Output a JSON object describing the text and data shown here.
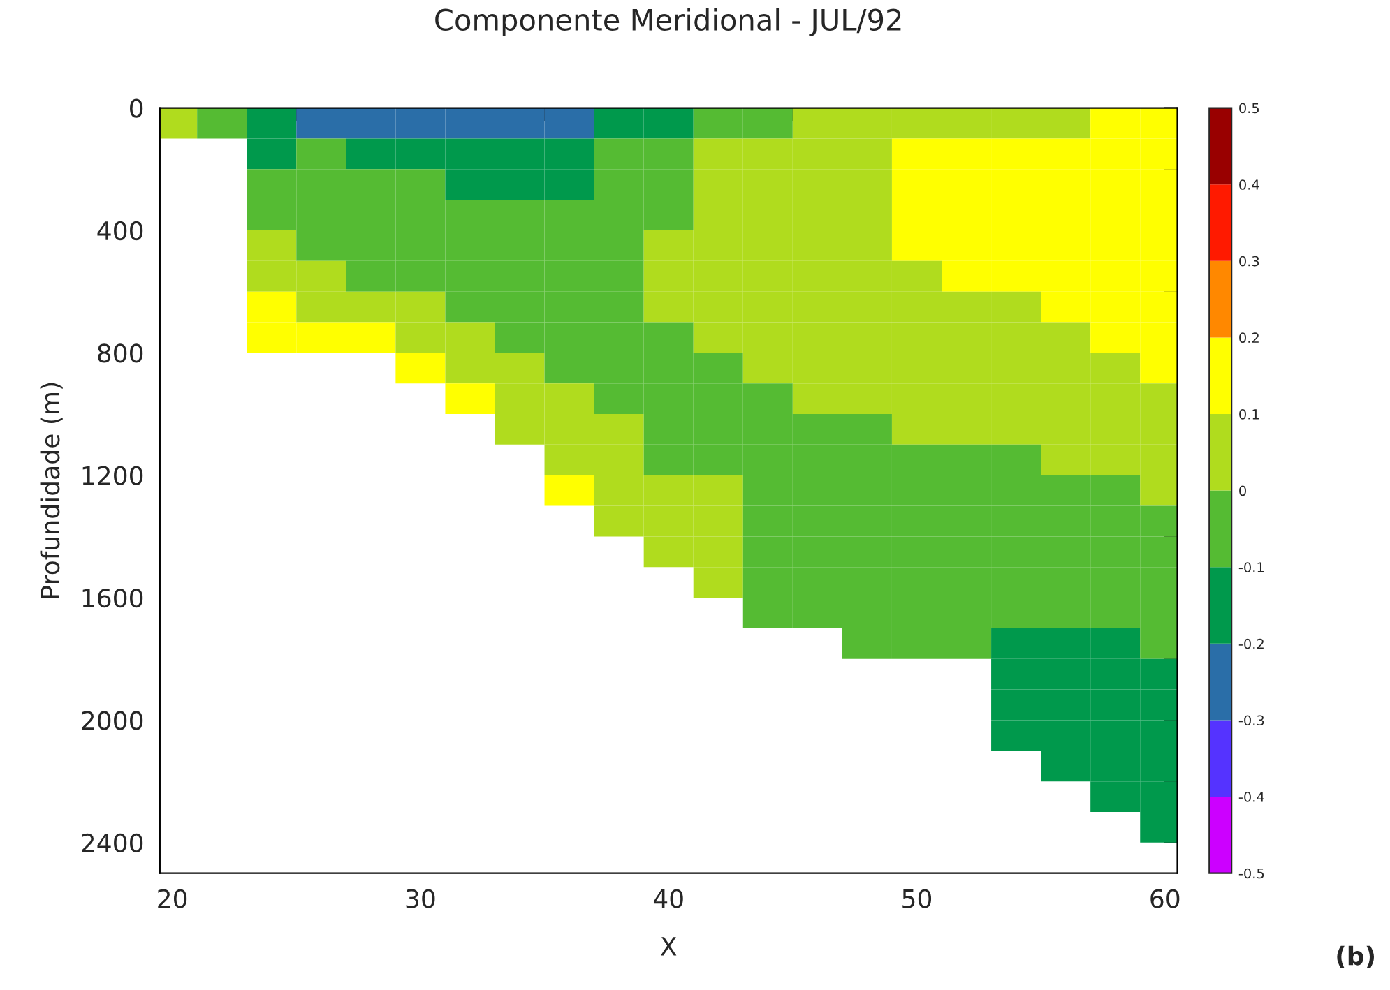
{
  "chart_data": {
    "type": "heatmap",
    "title": "Componente Meridional - JUL/92",
    "xlabel": "X",
    "ylabel": "Profundidade (m)",
    "annotations": [
      "(b)"
    ],
    "x": [
      20,
      22,
      24,
      26,
      28,
      30,
      32,
      34,
      36,
      38,
      40,
      42,
      44,
      46,
      48,
      50,
      52,
      54,
      56,
      58,
      60
    ],
    "y": [
      50,
      150,
      250,
      350,
      450,
      550,
      650,
      750,
      850,
      950,
      1050,
      1150,
      1250,
      1350,
      1450,
      1550,
      1650,
      1750,
      1850,
      1950,
      2050,
      2150,
      2250,
      2350
    ],
    "cells": [
      [
        0.05,
        -0.05,
        -0.15,
        -0.25,
        -0.25,
        -0.25,
        -0.25,
        -0.25,
        -0.25,
        -0.15,
        -0.15,
        -0.05,
        -0.05,
        0.05,
        0.05,
        0.05,
        0.05,
        0.05,
        0.05,
        0.15,
        0.15
      ],
      [
        null,
        null,
        -0.15,
        -0.05,
        -0.15,
        -0.15,
        -0.15,
        -0.15,
        -0.15,
        -0.05,
        -0.05,
        0.05,
        0.05,
        0.05,
        0.05,
        0.15,
        0.15,
        0.15,
        0.15,
        0.15,
        0.15
      ],
      [
        null,
        null,
        -0.05,
        -0.05,
        -0.05,
        -0.05,
        -0.15,
        -0.15,
        -0.15,
        -0.05,
        -0.05,
        0.05,
        0.05,
        0.05,
        0.05,
        0.15,
        0.15,
        0.15,
        0.15,
        0.15,
        0.15
      ],
      [
        null,
        null,
        -0.05,
        -0.05,
        -0.05,
        -0.05,
        -0.05,
        -0.05,
        -0.05,
        -0.05,
        -0.05,
        0.05,
        0.05,
        0.05,
        0.05,
        0.15,
        0.15,
        0.15,
        0.15,
        0.15,
        0.15
      ],
      [
        null,
        null,
        0.05,
        -0.05,
        -0.05,
        -0.05,
        -0.05,
        -0.05,
        -0.05,
        -0.05,
        0.05,
        0.05,
        0.05,
        0.05,
        0.05,
        0.15,
        0.15,
        0.15,
        0.15,
        0.15,
        0.15
      ],
      [
        null,
        null,
        0.05,
        0.05,
        -0.05,
        -0.05,
        -0.05,
        -0.05,
        -0.05,
        -0.05,
        0.05,
        0.05,
        0.05,
        0.05,
        0.05,
        0.05,
        0.15,
        0.15,
        0.15,
        0.15,
        0.15
      ],
      [
        null,
        null,
        0.15,
        0.05,
        0.05,
        0.05,
        -0.05,
        -0.05,
        -0.05,
        -0.05,
        0.05,
        0.05,
        0.05,
        0.05,
        0.05,
        0.05,
        0.05,
        0.05,
        0.15,
        0.15,
        0.15
      ],
      [
        null,
        null,
        0.15,
        0.15,
        0.15,
        0.05,
        0.05,
        -0.05,
        -0.05,
        -0.05,
        -0.05,
        0.05,
        0.05,
        0.05,
        0.05,
        0.05,
        0.05,
        0.05,
        0.05,
        0.15,
        0.15
      ],
      [
        null,
        null,
        null,
        null,
        null,
        0.15,
        0.05,
        0.05,
        -0.05,
        -0.05,
        -0.05,
        -0.05,
        0.05,
        0.05,
        0.05,
        0.05,
        0.05,
        0.05,
        0.05,
        0.05,
        0.15
      ],
      [
        null,
        null,
        null,
        null,
        null,
        null,
        0.15,
        0.05,
        0.05,
        -0.05,
        -0.05,
        -0.05,
        -0.05,
        0.05,
        0.05,
        0.05,
        0.05,
        0.05,
        0.05,
        0.05,
        0.05
      ],
      [
        null,
        null,
        null,
        null,
        null,
        null,
        null,
        0.05,
        0.05,
        0.05,
        -0.05,
        -0.05,
        -0.05,
        -0.05,
        -0.05,
        0.05,
        0.05,
        0.05,
        0.05,
        0.05,
        0.05
      ],
      [
        null,
        null,
        null,
        null,
        null,
        null,
        null,
        null,
        0.05,
        0.05,
        -0.05,
        -0.05,
        -0.05,
        -0.05,
        -0.05,
        -0.05,
        -0.05,
        -0.05,
        0.05,
        0.05,
        0.05
      ],
      [
        null,
        null,
        null,
        null,
        null,
        null,
        null,
        null,
        0.15,
        0.05,
        0.05,
        0.05,
        -0.05,
        -0.05,
        -0.05,
        -0.05,
        -0.05,
        -0.05,
        -0.05,
        -0.05,
        0.05
      ],
      [
        null,
        null,
        null,
        null,
        null,
        null,
        null,
        null,
        null,
        0.05,
        0.05,
        0.05,
        -0.05,
        -0.05,
        -0.05,
        -0.05,
        -0.05,
        -0.05,
        -0.05,
        -0.05,
        -0.05
      ],
      [
        null,
        null,
        null,
        null,
        null,
        null,
        null,
        null,
        null,
        null,
        0.05,
        0.05,
        -0.05,
        -0.05,
        -0.05,
        -0.05,
        -0.05,
        -0.05,
        -0.05,
        -0.05,
        -0.05
      ],
      [
        null,
        null,
        null,
        null,
        null,
        null,
        null,
        null,
        null,
        null,
        null,
        0.05,
        -0.05,
        -0.05,
        -0.05,
        -0.05,
        -0.05,
        -0.05,
        -0.05,
        -0.05,
        -0.05
      ],
      [
        null,
        null,
        null,
        null,
        null,
        null,
        null,
        null,
        null,
        null,
        null,
        null,
        -0.05,
        -0.05,
        -0.05,
        -0.05,
        -0.05,
        -0.05,
        -0.05,
        -0.05,
        -0.05
      ],
      [
        null,
        null,
        null,
        null,
        null,
        null,
        null,
        null,
        null,
        null,
        null,
        null,
        null,
        null,
        -0.05,
        -0.05,
        -0.05,
        -0.15,
        -0.15,
        -0.15,
        -0.05
      ],
      [
        null,
        null,
        null,
        null,
        null,
        null,
        null,
        null,
        null,
        null,
        null,
        null,
        null,
        null,
        null,
        null,
        null,
        -0.15,
        -0.15,
        -0.15,
        -0.15
      ],
      [
        null,
        null,
        null,
        null,
        null,
        null,
        null,
        null,
        null,
        null,
        null,
        null,
        null,
        null,
        null,
        null,
        null,
        -0.15,
        -0.15,
        -0.15,
        -0.15
      ],
      [
        null,
        null,
        null,
        null,
        null,
        null,
        null,
        null,
        null,
        null,
        null,
        null,
        null,
        null,
        null,
        null,
        null,
        -0.15,
        -0.15,
        -0.15,
        -0.15
      ],
      [
        null,
        null,
        null,
        null,
        null,
        null,
        null,
        null,
        null,
        null,
        null,
        null,
        null,
        null,
        null,
        null,
        null,
        null,
        -0.15,
        -0.15,
        -0.15
      ],
      [
        null,
        null,
        null,
        null,
        null,
        null,
        null,
        null,
        null,
        null,
        null,
        null,
        null,
        null,
        null,
        null,
        null,
        null,
        null,
        -0.15,
        -0.15
      ],
      [
        null,
        null,
        null,
        null,
        null,
        null,
        null,
        null,
        null,
        null,
        null,
        null,
        null,
        null,
        null,
        null,
        null,
        null,
        null,
        null,
        -0.15
      ]
    ],
    "colors": [
      "#cc00ff",
      "#5533ff",
      "#2a6ea8",
      "#00994c",
      "#55bb33",
      "#b0dc1e",
      "#ffff00",
      "#ff8800",
      "#ff1a00",
      "#990000"
    ],
    "clim": [
      -0.5,
      0.5
    ],
    "cticks": [
      -0.5,
      -0.4,
      -0.3,
      -0.2,
      -0.1,
      0,
      0.1,
      0.2,
      0.3,
      0.4,
      0.5
    ],
    "xlim": [
      19.5,
      60.5
    ],
    "xticks": [
      20,
      {
        "value": 25,
        "label": null
      },
      30,
      {
        "value": 35,
        "label": null
      },
      40,
      {
        "value": 45,
        "label": null
      },
      50,
      {
        "value": 55,
        "label": null
      },
      60
    ],
    "ylim": [
      2500,
      0
    ],
    "yticks": [
      0,
      {
        "value": 200,
        "label": null
      },
      400,
      {
        "value": 600,
        "label": null
      },
      800,
      {
        "value": 1000,
        "label": null
      },
      1200,
      {
        "value": 1400,
        "label": null
      },
      1600,
      {
        "value": 1800,
        "label": null
      },
      2000,
      {
        "value": 2200,
        "label": null
      },
      2400
    ],
    "grid": false
  }
}
